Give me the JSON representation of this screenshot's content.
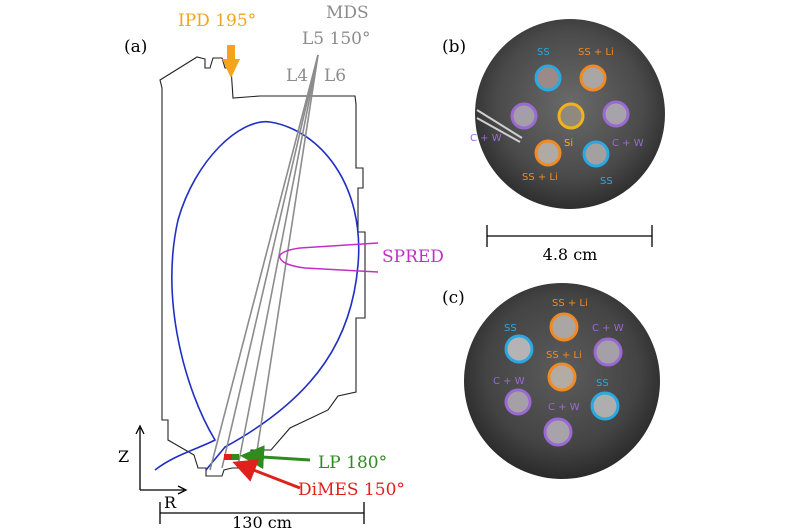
{
  "panel_labels": {
    "a": "(a)",
    "b": "(b)",
    "c": "(c)"
  },
  "diagnostics": {
    "ipd": "IPD 195°",
    "mds": "MDS",
    "l5": "L5 150°",
    "l4": "L4",
    "l6": "L6",
    "spred": "SPRED",
    "lp": "LP 180°",
    "dimes": "DiMES 150°"
  },
  "axes": {
    "z": "Z",
    "r": "R"
  },
  "scales": {
    "vessel": "130 cm",
    "sample": "4.8 cm"
  },
  "colors": {
    "ipd": "#f5a31a",
    "mds": "#8c8c8c",
    "spred": "#c22fc8",
    "lp": "#2e8b1e",
    "dimes": "#e0201b",
    "plasma": "#1f2fc4",
    "ss": "#2aa8e0",
    "li": "#f08a24",
    "cw": "#9a6ad0",
    "si": "#f2b21c"
  },
  "sample_b": {
    "labels": {
      "ss_top": "SS",
      "ssli_top": "SS + Li",
      "cw_left": "C + W",
      "si": "Si",
      "cw_right": "C + W",
      "ssli_bottom": "SS + Li",
      "ss_bottom": "SS"
    }
  },
  "sample_c": {
    "labels": {
      "ssli_top": "SS + Li",
      "ss_left": "SS",
      "cw_right_top": "C + W",
      "ssli_mid": "SS + Li",
      "cw_left": "C + W",
      "ss_right": "SS",
      "cw_bottom": "C + W"
    }
  }
}
